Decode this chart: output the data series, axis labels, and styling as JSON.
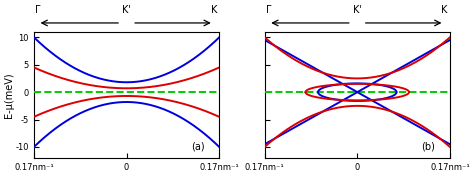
{
  "xlim": [
    -0.17,
    0.17
  ],
  "ylim": [
    -12,
    11
  ],
  "yticks": [
    -10,
    -5,
    0,
    5,
    10
  ],
  "xticks": [
    -0.17,
    0,
    0.17
  ],
  "xticklabels_a": [
    "0.17nm⁻¹",
    "0",
    "0.17nm⁻¹"
  ],
  "xticklabels_b": [
    "0.17nm⁻¹",
    "0",
    "0.17nm⁻¹"
  ],
  "ylabel": "E-μ(meV)",
  "top_label_left": "Γ",
  "top_label_mid": "K'",
  "top_label_right": "K",
  "panel_a_label": "(a)",
  "panel_b_label": "(b)",
  "blue_color": "#0000dd",
  "red_color": "#dd0000",
  "green_dashed_color": "#00cc00",
  "background": "white",
  "linewidth": 1.4
}
